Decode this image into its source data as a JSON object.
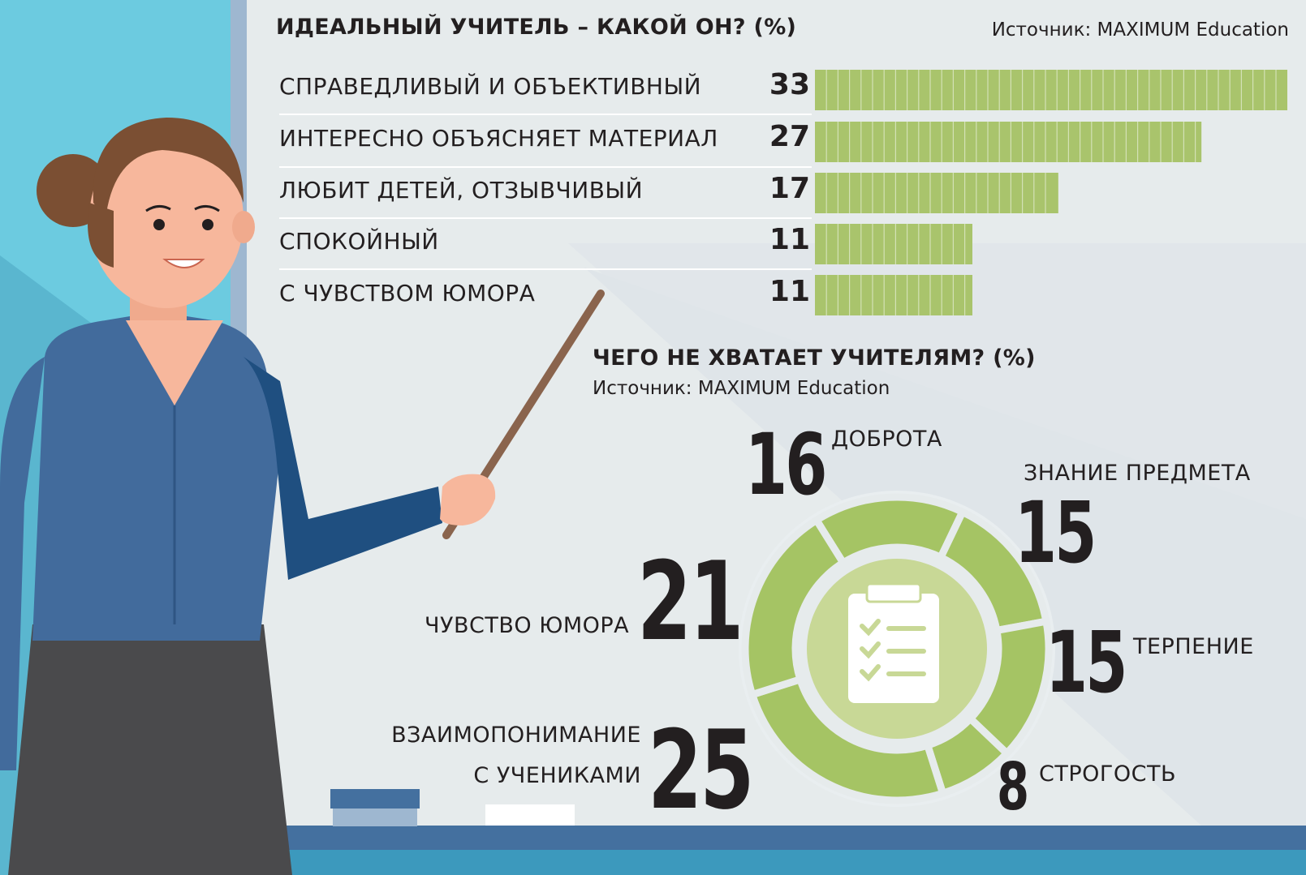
{
  "colors": {
    "bar": "#a9c46c",
    "donut": "#a5c464",
    "donut_inner": "#c8d896",
    "board": "#e6eaec",
    "text": "#231f20"
  },
  "icons": {
    "donut_center": "clipboard-checklist-icon",
    "figure": "teacher-with-pointer-illustration"
  },
  "chart_data": [
    {
      "type": "bar",
      "orientation": "horizontal",
      "title": "ИДЕАЛЬНЫЙ УЧИТЕЛЬ – КАКОЙ ОН? (%)",
      "source": "Источник: MAXIMUM Education",
      "categories": [
        "СПРАВЕДЛИВЫЙ И ОБЪЕКТИВНЫЙ",
        "ИНТЕРЕСНО ОБЪЯСНЯЕТ МАТЕРИАЛ",
        "ЛЮБИТ ДЕТЕЙ, ОТЗЫВЧИВЫЙ",
        "СПОКОЙНЫЙ",
        "С ЧУВСТВОМ ЮМОРА"
      ],
      "values": [
        33,
        27,
        17,
        11,
        11
      ]
    },
    {
      "type": "pie",
      "variant": "donut",
      "title": "ЧЕГО НЕ ХВАТАЕТ УЧИТЕЛЯМ? (%)",
      "source": "Источник: MAXIMUM Education",
      "categories": [
        "ДОБРОТА",
        "ЗНАНИЕ ПРЕДМЕТА",
        "ТЕРПЕНИЕ",
        "СТРОГОСТЬ",
        "ВЗАИМОПОНИМАНИЕ С УЧЕНИКАМИ",
        "ЧУВСТВО ЮМОРА"
      ],
      "values": [
        16,
        15,
        15,
        8,
        25,
        21
      ]
    }
  ]
}
